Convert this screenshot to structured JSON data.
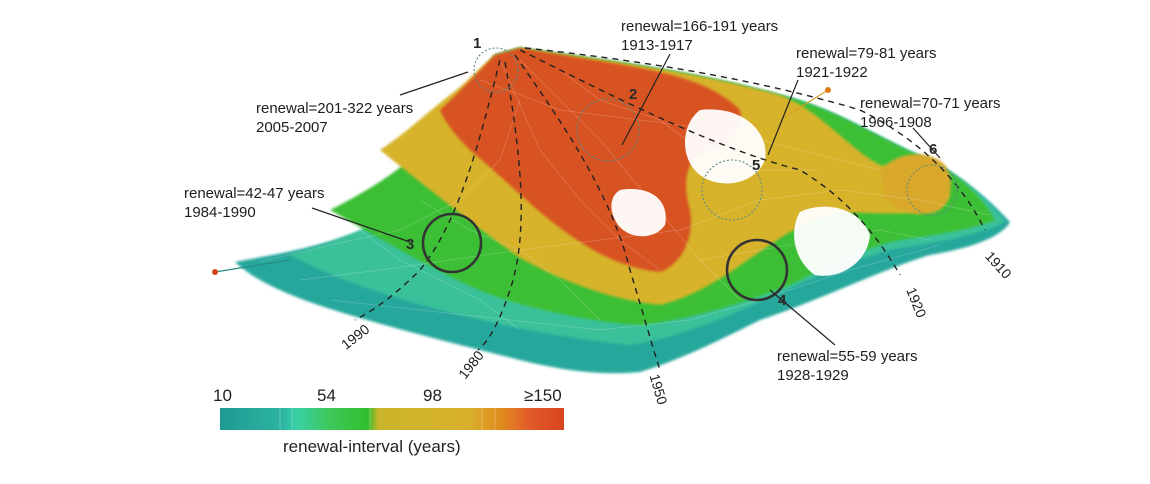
{
  "colors": {
    "teal": "#1f9d96",
    "mint": "#34c8a0",
    "green": "#3ec23c",
    "yellow": "#d6b52c",
    "orange": "#e07a1a",
    "red": "#d4461f"
  },
  "annotations": [
    {
      "id": "1",
      "renewal": "renewal=201-322 years",
      "years": "2005-2007"
    },
    {
      "id": "2",
      "renewal": "renewal=166-191 years",
      "years": "1913-1917"
    },
    {
      "id": "3",
      "renewal": "renewal=42-47 years",
      "years": "1984-1990"
    },
    {
      "id": "4",
      "renewal": "renewal=55-59 years",
      "years": "1928-1929"
    },
    {
      "id": "5",
      "renewal": "renewal=79-81 years",
      "years": "1921-1922"
    },
    {
      "id": "6",
      "renewal": "renewal=70-71 years",
      "years": "1906-1908"
    }
  ],
  "year_labels": [
    "1990",
    "1980",
    "1950",
    "1920",
    "1910"
  ],
  "colorbar": {
    "ticks": [
      "10",
      "54",
      "98",
      "≥150"
    ],
    "title": "renewal-interval (years)"
  }
}
